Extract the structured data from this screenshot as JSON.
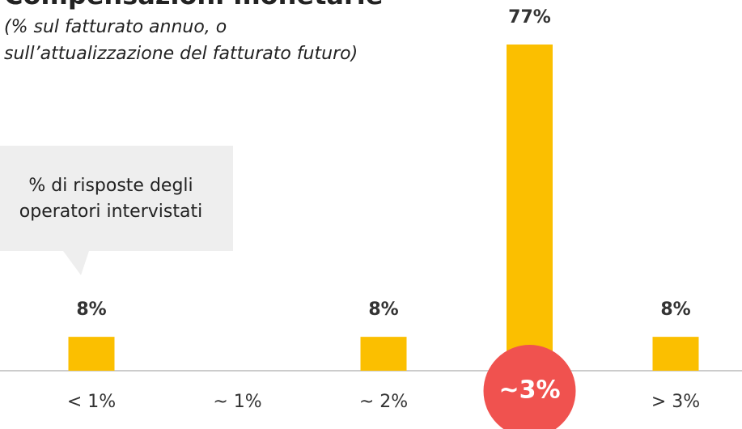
{
  "chart_data": {
    "type": "bar",
    "title": "Compensazioni monetarie",
    "subtitle": [
      "(% sul fatturato annuo, o",
      "sull’attualizzazione del fatturato futuro)"
    ],
    "annotation": [
      "% di risposte degli",
      "operatori intervistati"
    ],
    "categories": [
      "< 1%",
      "~ 1%",
      "~ 2%",
      "~3%",
      "> 3%"
    ],
    "values": [
      8,
      0,
      8,
      77,
      8
    ],
    "value_labels": [
      "8%",
      null,
      "8%",
      "77%",
      "8%"
    ],
    "color": "#fbbf00",
    "highlight": 3,
    "highlight_color": "#f0524f"
  }
}
